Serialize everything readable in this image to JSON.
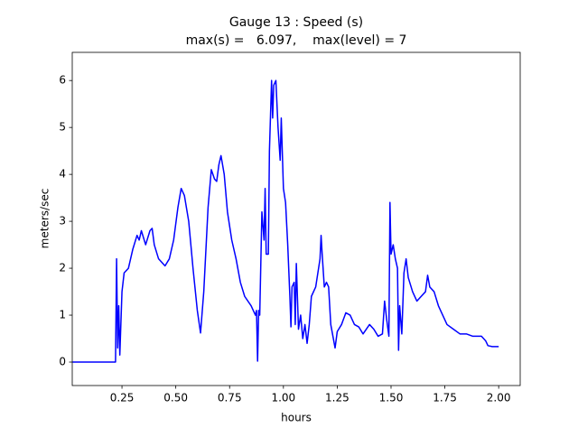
{
  "chart_data": {
    "type": "line",
    "title": "Gauge 13 : Speed (s)",
    "subtitle": "max(s) =   6.097,    max(level) = 7",
    "xlabel": "hours",
    "ylabel": "meters/sec",
    "color": "#0000ff",
    "xlim": [
      0.019,
      2.1
    ],
    "ylim": [
      -0.5,
      6.6
    ],
    "xticks": [
      0.25,
      {
        "value": 0.5,
        "label": "0.50"
      },
      0.75,
      {
        "value": 1,
        "label": "1.00"
      },
      1.25,
      {
        "value": 1.5,
        "label": "1.50"
      },
      1.75,
      {
        "value": 2,
        "label": "2.00"
      }
    ],
    "yticks": [
      0,
      1,
      2,
      3,
      4,
      5,
      6
    ],
    "x": [
      0.02,
      0.22,
      0.225,
      0.23,
      0.235,
      0.24,
      0.25,
      0.26,
      0.28,
      0.3,
      0.32,
      0.33,
      0.34,
      0.36,
      0.38,
      0.39,
      0.4,
      0.42,
      0.45,
      0.47,
      0.49,
      0.51,
      0.525,
      0.54,
      0.56,
      0.58,
      0.6,
      0.615,
      0.63,
      0.65,
      0.665,
      0.68,
      0.69,
      0.7,
      0.71,
      0.725,
      0.74,
      0.76,
      0.78,
      0.8,
      0.82,
      0.85,
      0.87,
      0.875,
      0.88,
      0.885,
      0.89,
      0.9,
      0.91,
      0.915,
      0.92,
      0.93,
      0.935,
      0.945,
      0.95,
      0.955,
      0.965,
      0.975,
      0.985,
      0.99,
      1.0,
      1.01,
      1.02,
      1.03,
      1.035,
      1.04,
      1.05,
      1.055,
      1.06,
      1.07,
      1.08,
      1.09,
      1.1,
      1.11,
      1.12,
      1.13,
      1.15,
      1.17,
      1.175,
      1.18,
      1.19,
      1.2,
      1.21,
      1.22,
      1.23,
      1.24,
      1.25,
      1.27,
      1.29,
      1.31,
      1.33,
      1.35,
      1.37,
      1.4,
      1.42,
      1.44,
      1.46,
      1.47,
      1.48,
      1.49,
      1.495,
      1.5,
      1.51,
      1.52,
      1.53,
      1.535,
      1.54,
      1.55,
      1.56,
      1.57,
      1.58,
      1.6,
      1.62,
      1.64,
      1.66,
      1.67,
      1.68,
      1.7,
      1.72,
      1.74,
      1.76,
      1.79,
      1.82,
      1.85,
      1.88,
      1.9,
      1.92,
      1.94,
      1.95,
      1.97,
      2.0
    ],
    "values": [
      0,
      0,
      2.2,
      0.3,
      1.2,
      0.15,
      1.5,
      1.9,
      2.0,
      2.4,
      2.7,
      2.6,
      2.8,
      2.5,
      2.8,
      2.85,
      2.5,
      2.2,
      2.05,
      2.2,
      2.6,
      3.3,
      3.7,
      3.55,
      3.0,
      2.0,
      1.1,
      0.62,
      1.5,
      3.3,
      4.1,
      3.9,
      3.85,
      4.2,
      4.4,
      4.0,
      3.2,
      2.6,
      2.2,
      1.7,
      1.4,
      1.2,
      1.0,
      1.1,
      0.02,
      1.1,
      1.0,
      3.2,
      2.6,
      3.7,
      2.3,
      2.3,
      4.5,
      6.0,
      5.2,
      5.9,
      6.0,
      5.0,
      4.3,
      5.2,
      3.7,
      3.4,
      2.5,
      1.4,
      0.75,
      1.6,
      1.7,
      0.8,
      2.1,
      0.7,
      1.0,
      0.5,
      0.8,
      0.4,
      0.8,
      1.4,
      1.6,
      2.2,
      2.7,
      2.3,
      1.6,
      1.7,
      1.6,
      0.8,
      0.55,
      0.3,
      0.65,
      0.8,
      1.05,
      1.0,
      0.8,
      0.75,
      0.6,
      0.8,
      0.7,
      0.55,
      0.6,
      1.3,
      0.9,
      0.55,
      3.4,
      2.3,
      2.5,
      2.2,
      2.0,
      0.25,
      1.2,
      0.6,
      1.9,
      2.2,
      1.8,
      1.5,
      1.3,
      1.4,
      1.5,
      1.85,
      1.6,
      1.5,
      1.2,
      1.0,
      0.8,
      0.7,
      0.6,
      0.6,
      0.55,
      0.55,
      0.55,
      0.45,
      0.35,
      0.33,
      0.33
    ]
  }
}
